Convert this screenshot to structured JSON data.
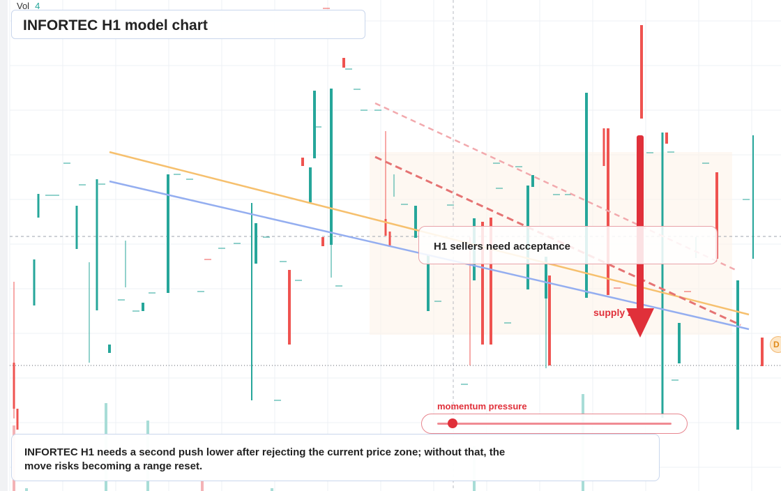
{
  "header": {
    "vol_label": "Vol",
    "vol_value": "4"
  },
  "chart_title": "INFORTEC H1 model chart",
  "acceptance_label": "H1 sellers need acceptance",
  "zone_label": "supply zone",
  "momentum": {
    "label": "momentum pressure",
    "level": 0.07
  },
  "note": "INFORTEC H1 needs a second push lower after rejecting the current price zone; without that, the move risks becoming a range reset.",
  "right_badge": "D",
  "colors": {
    "up": "#26a69a",
    "down": "#ef5350",
    "trend_orange": "#f6c06e",
    "trend_blue": "#94aef0",
    "dashed_red": "#e57373",
    "accent_red": "#e0303a"
  },
  "chart_data": {
    "type": "candlestick",
    "title": "INFORTEC H1 model chart",
    "price_range": [
      0,
      100
    ],
    "x_range": [
      0,
      100
    ],
    "candles": [
      {
        "o": 0,
        "h": 0,
        "l": 0,
        "c": 0
      }
    ],
    "candles_note_free": [],
    "series": [
      {
        "o": 61,
        "h": 71.5,
        "l": 71.5,
        "c": 61
      },
      {
        "o": 59,
        "h": 63,
        "l": 63,
        "c": 59
      },
      {
        "o": 61,
        "h": 71,
        "l": 71,
        "c": 61
      },
      {
        "o": 76,
        "h": 85,
        "l": 85,
        "c": 76
      },
      {
        "o": 75,
        "h": 80,
        "l": 80,
        "c": 75
      },
      {
        "o": 68,
        "h": 68,
        "l": 68,
        "c": 68
      },
      {
        "o": 76,
        "h": 74,
        "l": 74,
        "c": 76
      },
      {
        "o": 68,
        "h": 68,
        "l": 68,
        "c": 68
      },
      {
        "o": 64,
        "h": 74,
        "l": 74,
        "c": 64
      },
      {
        "o": 72,
        "h": 72,
        "l": 72,
        "c": 72
      },
      {
        "o": 59,
        "h": 77,
        "l": 77,
        "c": 59
      },
      {
        "o": 57,
        "h": 57,
        "l": 57,
        "c": 57
      }
    ],
    "volume": [
      {
        "bar": 1
      }
    ],
    "trendlines": [
      {
        "name": "",
        "color": "orange",
        "style": "solid"
      },
      {
        "name": "",
        "color": "blue",
        "style": "solid"
      },
      {
        "name": "",
        "color": "red",
        "style": "dashed"
      },
      {
        "name": "",
        "color": "light-red",
        "style": "dashed"
      }
    ],
    "annotations": [
      "H1 sellers need acceptance",
      "supply zone",
      "momentum pressure"
    ],
    "grid": true
  }
}
